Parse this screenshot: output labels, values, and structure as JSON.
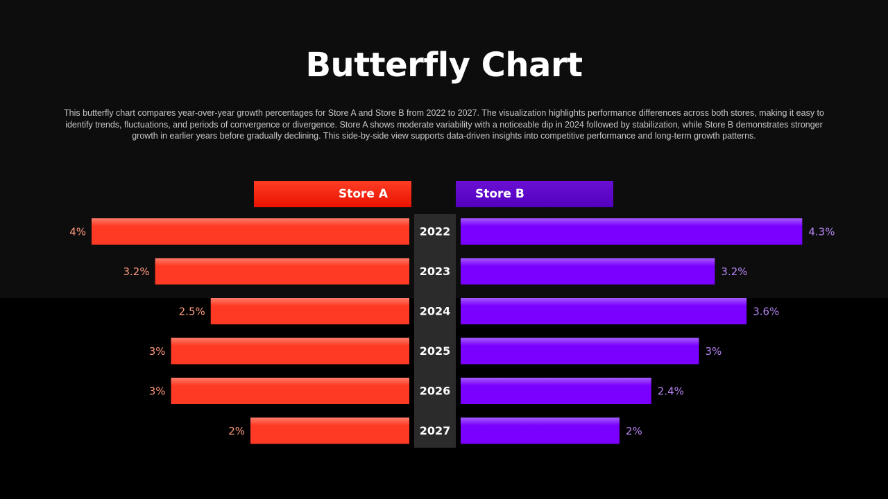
{
  "title": "Butterfly Chart",
  "description": "This butterfly chart compares year-over-year growth percentages for Store A and Store B from 2022 to 2027. The visualization highlights performance differences across both stores, making it easy to identify trends, fluctuations, and periods of convergence or divergence. Store A shows moderate variability with a noticeable dip in 2024 followed by stabilization, while Store B demonstrates stronger growth in earlier years before gradually declining. This side-by-side view supports data-driven insights into competitive performance and long-term growth patterns.",
  "colors": {
    "store_a": "#ff3a24",
    "store_b": "#7a00ff",
    "store_a_label": "#ff9a7e",
    "store_b_label": "#b585f2"
  },
  "chart_data": {
    "type": "bar",
    "orientation": "butterfly",
    "categories": [
      "2022",
      "2023",
      "2024",
      "2025",
      "2026",
      "2027"
    ],
    "unit": "%",
    "series": [
      {
        "name": "Store A",
        "side": "left",
        "values": [
          4,
          3.2,
          2.5,
          3,
          3,
          2
        ],
        "labels": [
          "4%",
          "3.2%",
          "2.5%",
          "3%",
          "3%",
          "2%"
        ]
      },
      {
        "name": "Store B",
        "side": "right",
        "values": [
          4.3,
          3.2,
          3.6,
          3,
          2.4,
          2
        ],
        "labels": [
          "4.3%",
          "3.2%",
          "3.6%",
          "3%",
          "2.4%",
          "2%"
        ]
      }
    ],
    "legend": "top-center",
    "grid": false
  }
}
